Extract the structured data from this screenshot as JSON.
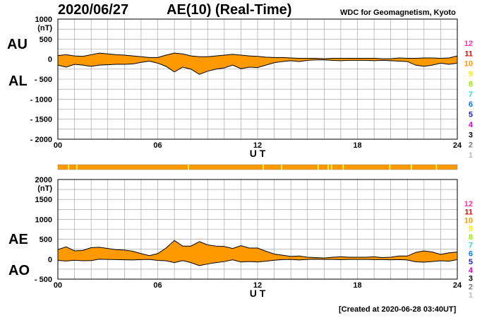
{
  "header": {
    "date": "2020/06/27",
    "title": "AE(10) (Real-Time)",
    "organization": "WDC for Geomagnetism, Kyoto"
  },
  "footer": {
    "created": "[Created at 2020-06-28 03:40UT]"
  },
  "station_scale": [
    {
      "label": "12",
      "color": "#ff33aa"
    },
    {
      "label": "11",
      "color": "#ee0000"
    },
    {
      "label": "10",
      "color": "#ff9900"
    },
    {
      "label": "9",
      "color": "#ffee00"
    },
    {
      "label": "8",
      "color": "#99ee00"
    },
    {
      "label": "7",
      "color": "#33ddcc"
    },
    {
      "label": "6",
      "color": "#0077ff"
    },
    {
      "label": "5",
      "color": "#2222cc"
    },
    {
      "label": "4",
      "color": "#cc00cc"
    },
    {
      "label": "3",
      "color": "#000000"
    },
    {
      "label": "2",
      "color": "#777777"
    },
    {
      "label": "1",
      "color": "#bbbbbb"
    }
  ],
  "colors": {
    "fill": "#ff9900",
    "station_fill": "#ffee55",
    "grid": "#999999"
  },
  "chart_data": [
    {
      "type": "area",
      "panel": "AU/AL",
      "series_labels": [
        "AU",
        "AL"
      ],
      "ylabel": "(nT)",
      "xlabel": "U T",
      "ylim": [
        -2000,
        1000
      ],
      "yticks": [
        1000,
        500,
        0,
        -500,
        -1000,
        -1500,
        -2000
      ],
      "ytick_labels": [
        "1000",
        "500",
        "0",
        "- 500",
        "- 1000",
        "- 1500",
        "- 2000"
      ],
      "xlim": [
        0,
        24
      ],
      "xticks": [
        0,
        6,
        12,
        18,
        24
      ],
      "xtick_labels": [
        "00",
        "06",
        "12",
        "18",
        "24"
      ],
      "x": [
        0,
        0.5,
        1,
        1.5,
        2,
        2.5,
        3,
        3.5,
        4,
        4.5,
        5,
        5.5,
        6,
        6.5,
        7,
        7.5,
        8,
        8.5,
        9,
        9.5,
        10,
        10.5,
        11,
        11.5,
        12,
        12.5,
        13,
        13.5,
        14,
        14.5,
        15,
        15.5,
        16,
        16.5,
        17,
        17.5,
        18,
        18.5,
        19,
        19.5,
        20,
        20.5,
        21,
        21.5,
        22,
        22.5,
        23,
        23.5,
        24
      ],
      "series": [
        {
          "name": "AU",
          "values": [
            90,
            110,
            80,
            70,
            110,
            150,
            130,
            110,
            100,
            80,
            60,
            40,
            40,
            100,
            150,
            130,
            80,
            60,
            60,
            80,
            100,
            120,
            100,
            80,
            70,
            50,
            40,
            40,
            30,
            20,
            20,
            20,
            10,
            20,
            20,
            20,
            20,
            20,
            20,
            10,
            10,
            30,
            20,
            20,
            30,
            30,
            20,
            30,
            80
          ]
        },
        {
          "name": "AL",
          "values": [
            -150,
            -200,
            -130,
            -150,
            -180,
            -150,
            -140,
            -130,
            -130,
            -120,
            -80,
            -50,
            -100,
            -180,
            -320,
            -200,
            -250,
            -380,
            -300,
            -250,
            -220,
            -150,
            -240,
            -200,
            -210,
            -150,
            -90,
            -60,
            -40,
            -60,
            -30,
            -20,
            -20,
            -30,
            -40,
            -30,
            -30,
            -30,
            -40,
            -30,
            -40,
            -50,
            -60,
            -150,
            -180,
            -150,
            -100,
            -130,
            -100
          ]
        }
      ]
    },
    {
      "type": "area",
      "panel": "AE/AO",
      "series_labels": [
        "AE",
        "AO"
      ],
      "ylabel": "(nT)",
      "xlabel": "U T",
      "ylim": [
        -500,
        2000
      ],
      "yticks": [
        2000,
        1500,
        1000,
        500,
        0,
        -500
      ],
      "ytick_labels": [
        "2000",
        "1500",
        "1000",
        "500",
        "0",
        "- 500"
      ],
      "xlim": [
        0,
        24
      ],
      "xticks": [
        0,
        6,
        12,
        18,
        24
      ],
      "xtick_labels": [
        "00",
        "06",
        "12",
        "18",
        "24"
      ],
      "x": [
        0,
        0.5,
        1,
        1.5,
        2,
        2.5,
        3,
        3.5,
        4,
        4.5,
        5,
        5.5,
        6,
        6.5,
        7,
        7.5,
        8,
        8.5,
        9,
        9.5,
        10,
        10.5,
        11,
        11.5,
        12,
        12.5,
        13,
        13.5,
        14,
        14.5,
        15,
        15.5,
        16,
        16.5,
        17,
        17.5,
        18,
        18.5,
        19,
        19.5,
        20,
        20.5,
        21,
        21.5,
        22,
        22.5,
        23,
        23.5,
        24
      ],
      "series": [
        {
          "name": "AE",
          "values": [
            240,
            310,
            210,
            220,
            290,
            300,
            270,
            240,
            230,
            200,
            140,
            90,
            140,
            280,
            470,
            330,
            330,
            440,
            360,
            330,
            320,
            270,
            340,
            280,
            280,
            200,
            130,
            100,
            70,
            80,
            50,
            40,
            30,
            50,
            60,
            50,
            50,
            50,
            60,
            40,
            50,
            80,
            80,
            170,
            210,
            180,
            120,
            160,
            180
          ]
        },
        {
          "name": "AO",
          "values": [
            -30,
            -45,
            -25,
            -40,
            -35,
            0,
            -5,
            -10,
            -15,
            -20,
            -10,
            -5,
            -30,
            -40,
            -85,
            -35,
            -85,
            -160,
            -120,
            -85,
            -60,
            -15,
            -70,
            -60,
            -70,
            -50,
            -25,
            -10,
            -5,
            -20,
            -5,
            0,
            -5,
            -5,
            -10,
            -5,
            -5,
            -5,
            -10,
            -10,
            -15,
            -10,
            -20,
            -65,
            -75,
            -60,
            -40,
            -50,
            -10
          ]
        }
      ]
    }
  ]
}
